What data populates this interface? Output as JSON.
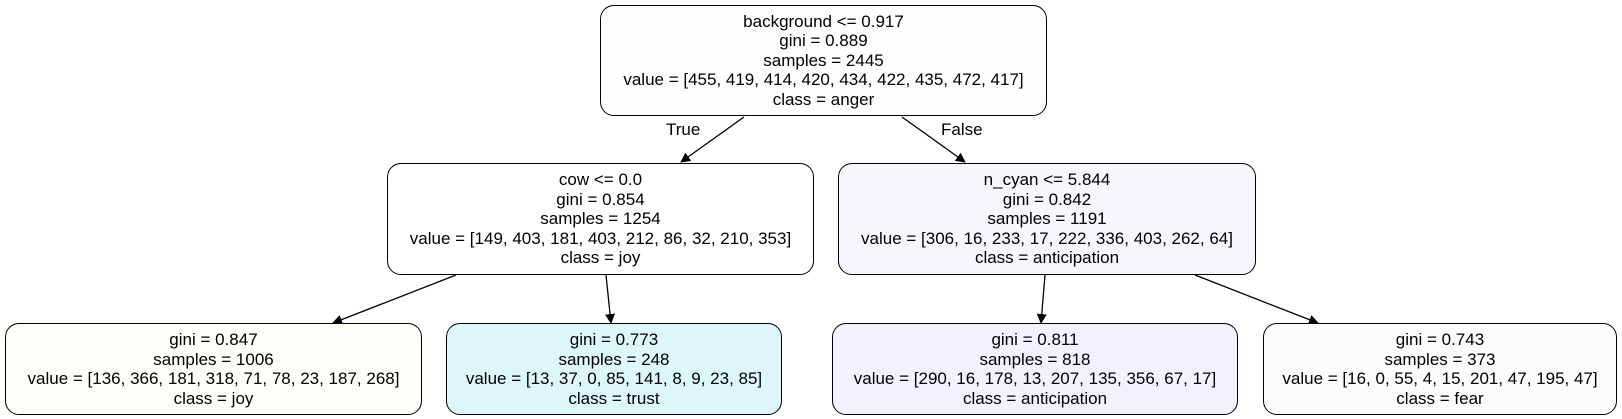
{
  "tree": {
    "nodes": {
      "root": {
        "split": "background <= 0.917",
        "gini": "gini = 0.889",
        "samples": "samples = 2445",
        "value": "value = [455, 419, 414, 420, 434, 422, 435, 472, 417]",
        "class": "class = anger",
        "fill": "#fefefe"
      },
      "left": {
        "split": "cow <= 0.0",
        "gini": "gini = 0.854",
        "samples": "samples = 1254",
        "value": "value = [149, 403, 181, 403, 212, 86, 32, 210, 353]",
        "class": "class = joy",
        "fill": "#ffffff"
      },
      "right": {
        "split": "n_cyan <= 5.844",
        "gini": "gini = 0.842",
        "samples": "samples = 1191",
        "value": "value = [306, 16, 233, 17, 222, 336, 403, 262, 64]",
        "class": "class = anticipation",
        "fill": "#f8f5fd"
      },
      "ll": {
        "gini": "gini = 0.847",
        "samples": "samples = 1006",
        "value": "value = [136, 366, 181, 318, 71, 78, 23, 187, 268]",
        "class": "class = joy",
        "fill": "#fdfef7"
      },
      "lr": {
        "gini": "gini = 0.773",
        "samples": "samples = 248",
        "value": "value = [13, 37, 0, 85, 141, 8, 9, 23, 85]",
        "class": "class = trust",
        "fill": "#ddf6f9"
      },
      "rl": {
        "gini": "gini = 0.811",
        "samples": "samples = 818",
        "value": "value = [290, 16, 178, 13, 207, 135, 356, 67, 17]",
        "class": "class = anticipation",
        "fill": "#f5f0fd"
      },
      "rr": {
        "gini": "gini = 0.743",
        "samples": "samples = 373",
        "value": "value = [16, 0, 55, 4, 15, 201, 47, 195, 47]",
        "class": "class = fear",
        "fill": "#fafcfe"
      }
    },
    "edge_labels": {
      "true": "True",
      "false": "False"
    }
  }
}
